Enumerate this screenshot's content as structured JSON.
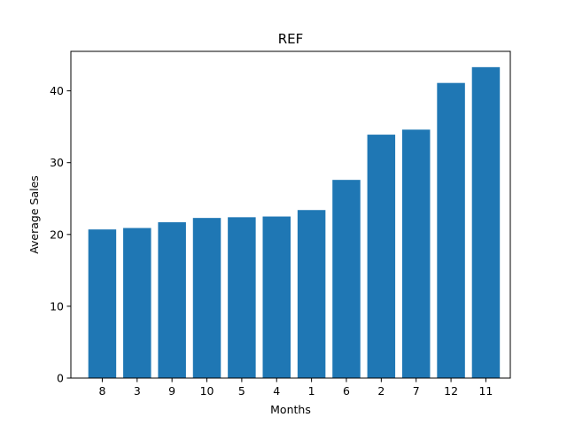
{
  "chart_data": {
    "type": "bar",
    "title": "REF",
    "xlabel": "Months",
    "ylabel": "Average Sales",
    "categories": [
      "8",
      "3",
      "9",
      "10",
      "5",
      "4",
      "1",
      "6",
      "2",
      "7",
      "12",
      "11"
    ],
    "values": [
      20.7,
      20.9,
      21.7,
      22.3,
      22.4,
      22.5,
      23.4,
      27.6,
      33.9,
      34.6,
      41.1,
      43.3
    ],
    "ylim": [
      0,
      45.5
    ],
    "yticks": [
      0,
      10,
      20,
      30,
      40
    ],
    "grid": false,
    "bar_color": "#1f77b4"
  }
}
